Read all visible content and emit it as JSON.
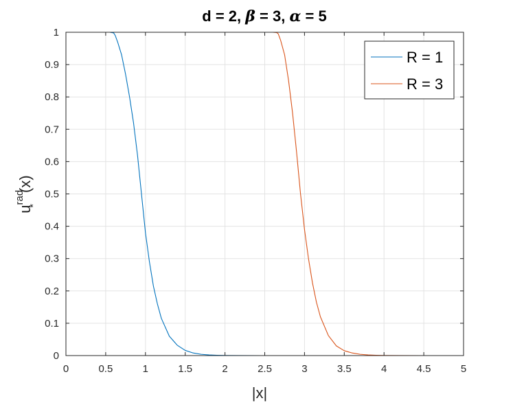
{
  "chart_data": {
    "type": "line",
    "title_parts": [
      "d = 2, ",
      "β",
      " = 3, ",
      "α",
      " = 5"
    ],
    "xlabel": "|x|",
    "ylabel_parts": [
      "u",
      "rad",
      "*",
      "(x)"
    ],
    "xlim": [
      0,
      5
    ],
    "ylim": [
      0,
      1
    ],
    "xticks": [
      "0",
      "0.5",
      "1",
      "1.5",
      "2",
      "2.5",
      "3",
      "3.5",
      "4",
      "4.5",
      "5"
    ],
    "yticks": [
      "0",
      "0.1",
      "0.2",
      "0.3",
      "0.4",
      "0.5",
      "0.6",
      "0.7",
      "0.8",
      "0.9",
      "1"
    ],
    "grid": true,
    "legend_position": "top-right",
    "series": [
      {
        "name": "R = 1",
        "color": "#0072BD",
        "x": [
          0,
          0.55,
          0.6,
          0.62,
          0.65,
          0.7,
          0.75,
          0.8,
          0.85,
          0.9,
          0.95,
          1.0,
          1.05,
          1.1,
          1.15,
          1.2,
          1.3,
          1.4,
          1.5,
          1.6,
          1.7,
          1.8,
          1.9,
          2.0,
          2.2,
          2.5,
          3.0,
          4.0,
          5.0
        ],
        "y": [
          1,
          1,
          0.998,
          0.99,
          0.97,
          0.93,
          0.87,
          0.8,
          0.72,
          0.62,
          0.5,
          0.38,
          0.29,
          0.215,
          0.16,
          0.115,
          0.06,
          0.032,
          0.016,
          0.008,
          0.004,
          0.002,
          0.001,
          0.0005,
          0.0002,
          0,
          0,
          0,
          0
        ]
      },
      {
        "name": "R = 3",
        "color": "#D95319",
        "x": [
          0,
          2.6,
          2.65,
          2.67,
          2.7,
          2.75,
          2.8,
          2.85,
          2.9,
          2.95,
          3.0,
          3.05,
          3.1,
          3.15,
          3.2,
          3.3,
          3.4,
          3.5,
          3.6,
          3.7,
          3.8,
          3.9,
          4.0,
          4.2,
          4.5,
          5.0
        ],
        "y": [
          1,
          1,
          0.999,
          0.995,
          0.975,
          0.93,
          0.85,
          0.75,
          0.63,
          0.5,
          0.39,
          0.3,
          0.225,
          0.165,
          0.12,
          0.062,
          0.03,
          0.015,
          0.008,
          0.004,
          0.002,
          0.001,
          0.0005,
          0.0001,
          0,
          0
        ]
      }
    ]
  }
}
